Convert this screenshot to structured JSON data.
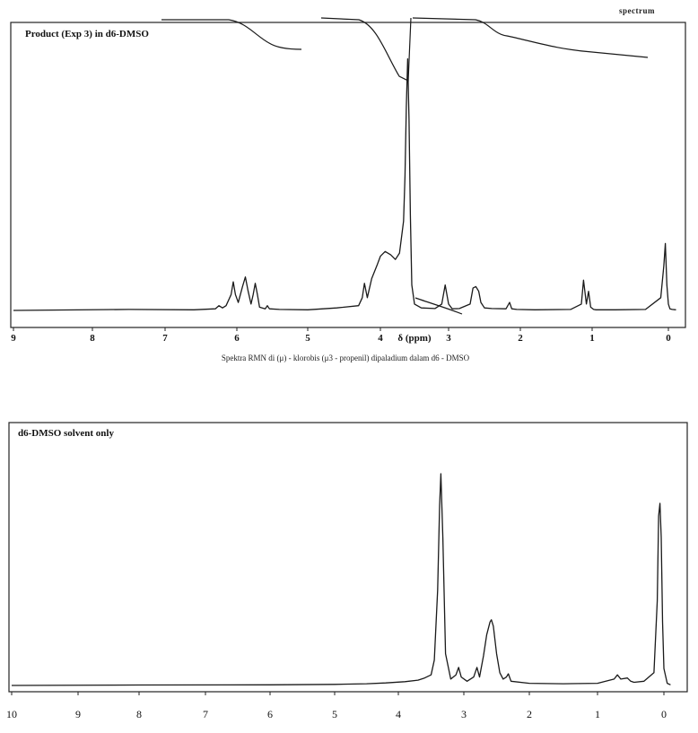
{
  "corner_label": "spectrum",
  "chart_data": [
    {
      "type": "line",
      "title": "Product (Exp 3) in d6-DMSO",
      "xlabel": "δ (ppm)",
      "caption": "Spektra RMN di (μ) - klorobis (μ3 - propenil) dipaladium dalam d6 - DMSO",
      "xlim": [
        9,
        -0.1
      ],
      "x_reversed": true,
      "xticks": [
        "9",
        "8",
        "7",
        "6",
        "5",
        "4",
        "δ (ppm)",
        "3",
        "2",
        "1",
        "0"
      ],
      "xtick_values": [
        9,
        8,
        7,
        6,
        5,
        4,
        3.5,
        3,
        2,
        1,
        0
      ],
      "grid": false,
      "series": [
        {
          "x": [
            9.0,
            7.5,
            6.6,
            6.3,
            6.25,
            6.2,
            6.15,
            6.08,
            6.05,
            6.02,
            5.98,
            5.92,
            5.88,
            5.84,
            5.8,
            5.77,
            5.74,
            5.71,
            5.68,
            5.6,
            5.57,
            5.54,
            5.4,
            5.0,
            4.6,
            4.3,
            4.25,
            4.22,
            4.18,
            4.12,
            4.05,
            4.0,
            3.93,
            3.85,
            3.78,
            3.72,
            3.66,
            3.64,
            3.62,
            3.6,
            3.58,
            3.56,
            3.54,
            3.5,
            3.4,
            3.2,
            3.1,
            3.05,
            3.0,
            2.95,
            2.85,
            2.7,
            2.66,
            2.62,
            2.58,
            2.55,
            2.5,
            2.4,
            2.2,
            2.15,
            2.12,
            2.05,
            1.8,
            1.3,
            1.15,
            1.12,
            1.08,
            1.05,
            1.02,
            0.98,
            0.95,
            0.7,
            0.3,
            0.1,
            0.06,
            0.04,
            0.02,
            0.0,
            -0.02,
            -0.05,
            -0.1
          ],
          "y": [
            0,
            0.3,
            0.2,
            0.5,
            1.5,
            0.8,
            1.5,
            5.0,
            9.0,
            5.0,
            2.5,
            7.5,
            10.5,
            6.0,
            2.0,
            5.0,
            8.5,
            5.0,
            1.0,
            0.5,
            1.5,
            0.5,
            0.3,
            0.2,
            0.8,
            1.5,
            4.0,
            8.5,
            4.0,
            10.0,
            14.0,
            17.0,
            18.5,
            17.5,
            16.0,
            18.0,
            28.0,
            42.0,
            64.0,
            79.0,
            60.0,
            30.0,
            8.0,
            2.0,
            0.8,
            0.6,
            2.0,
            8.0,
            2.0,
            0.5,
            0.6,
            2.0,
            7.0,
            7.5,
            6.0,
            2.5,
            0.8,
            0.6,
            0.5,
            2.5,
            0.5,
            0.3,
            0.2,
            0.3,
            2.0,
            9.5,
            2.0,
            6.0,
            1.0,
            0.3,
            0.2,
            0.2,
            0.3,
            4.0,
            14.0,
            21.0,
            8.0,
            2.0,
            0.5,
            0.3,
            0.2
          ]
        }
      ]
    },
    {
      "type": "line",
      "title": "d6-DMSO solvent only",
      "xlabel": "",
      "xlim": [
        10,
        -0.1
      ],
      "x_reversed": true,
      "xticks": [
        "10",
        "9",
        "8",
        "7",
        "6",
        "5",
        "4",
        "3",
        "2",
        "1",
        "0"
      ],
      "xtick_values": [
        10,
        9,
        8,
        7,
        6,
        5,
        4,
        3,
        2,
        1,
        0
      ],
      "grid": false,
      "series": [
        {
          "x": [
            10.0,
            8.0,
            6.0,
            5.0,
            4.5,
            4.2,
            3.9,
            3.7,
            3.6,
            3.5,
            3.45,
            3.4,
            3.37,
            3.35,
            3.32,
            3.28,
            3.2,
            3.12,
            3.08,
            3.04,
            2.95,
            2.85,
            2.8,
            2.76,
            2.7,
            2.65,
            2.6,
            2.58,
            2.55,
            2.5,
            2.45,
            2.4,
            2.35,
            2.32,
            2.28,
            2.0,
            1.5,
            1.0,
            0.75,
            0.7,
            0.65,
            0.55,
            0.5,
            0.45,
            0.3,
            0.15,
            0.1,
            0.08,
            0.06,
            0.04,
            0.02,
            0.0,
            -0.05,
            -0.1
          ],
          "y": [
            0,
            0.2,
            0.3,
            0.5,
            0.8,
            1.2,
            1.8,
            2.5,
            3.5,
            5.0,
            12.0,
            45.0,
            85.0,
            100.0,
            70.0,
            15.0,
            3.0,
            5.0,
            8.5,
            4.0,
            2.0,
            4.0,
            8.5,
            4.0,
            14.0,
            24.0,
            30.0,
            31.0,
            28.0,
            15.0,
            6.0,
            3.0,
            4.0,
            5.5,
            2.0,
            1.0,
            0.8,
            1.0,
            3.0,
            5.0,
            3.0,
            3.5,
            2.0,
            1.5,
            2.0,
            6.0,
            40.0,
            80.0,
            86.0,
            70.0,
            30.0,
            8.0,
            1.0,
            0.3
          ]
        }
      ]
    }
  ]
}
